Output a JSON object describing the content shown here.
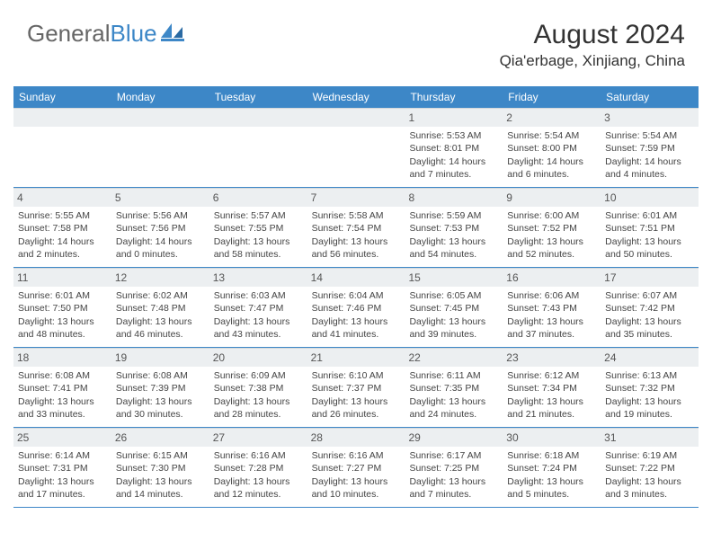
{
  "brand": {
    "word1": "General",
    "word2": "Blue"
  },
  "title": "August 2024",
  "location": "Qia'erbage, Xinjiang, China",
  "style": {
    "header_bg": "#3d87c7",
    "header_text": "#ffffff",
    "daynum_bg": "#eceff1",
    "border_color": "#3d87c7",
    "body_text": "#444444",
    "font_family": "Arial",
    "title_fontsize": 30,
    "location_fontsize": 17,
    "dayheader_fontsize": 12,
    "cell_fontsize": 10.5
  },
  "day_names": [
    "Sunday",
    "Monday",
    "Tuesday",
    "Wednesday",
    "Thursday",
    "Friday",
    "Saturday"
  ],
  "weeks": [
    [
      null,
      null,
      null,
      null,
      {
        "n": "1",
        "sunrise": "5:53 AM",
        "sunset": "8:01 PM",
        "daylight": "14 hours and 7 minutes."
      },
      {
        "n": "2",
        "sunrise": "5:54 AM",
        "sunset": "8:00 PM",
        "daylight": "14 hours and 6 minutes."
      },
      {
        "n": "3",
        "sunrise": "5:54 AM",
        "sunset": "7:59 PM",
        "daylight": "14 hours and 4 minutes."
      }
    ],
    [
      {
        "n": "4",
        "sunrise": "5:55 AM",
        "sunset": "7:58 PM",
        "daylight": "14 hours and 2 minutes."
      },
      {
        "n": "5",
        "sunrise": "5:56 AM",
        "sunset": "7:56 PM",
        "daylight": "14 hours and 0 minutes."
      },
      {
        "n": "6",
        "sunrise": "5:57 AM",
        "sunset": "7:55 PM",
        "daylight": "13 hours and 58 minutes."
      },
      {
        "n": "7",
        "sunrise": "5:58 AM",
        "sunset": "7:54 PM",
        "daylight": "13 hours and 56 minutes."
      },
      {
        "n": "8",
        "sunrise": "5:59 AM",
        "sunset": "7:53 PM",
        "daylight": "13 hours and 54 minutes."
      },
      {
        "n": "9",
        "sunrise": "6:00 AM",
        "sunset": "7:52 PM",
        "daylight": "13 hours and 52 minutes."
      },
      {
        "n": "10",
        "sunrise": "6:01 AM",
        "sunset": "7:51 PM",
        "daylight": "13 hours and 50 minutes."
      }
    ],
    [
      {
        "n": "11",
        "sunrise": "6:01 AM",
        "sunset": "7:50 PM",
        "daylight": "13 hours and 48 minutes."
      },
      {
        "n": "12",
        "sunrise": "6:02 AM",
        "sunset": "7:48 PM",
        "daylight": "13 hours and 46 minutes."
      },
      {
        "n": "13",
        "sunrise": "6:03 AM",
        "sunset": "7:47 PM",
        "daylight": "13 hours and 43 minutes."
      },
      {
        "n": "14",
        "sunrise": "6:04 AM",
        "sunset": "7:46 PM",
        "daylight": "13 hours and 41 minutes."
      },
      {
        "n": "15",
        "sunrise": "6:05 AM",
        "sunset": "7:45 PM",
        "daylight": "13 hours and 39 minutes."
      },
      {
        "n": "16",
        "sunrise": "6:06 AM",
        "sunset": "7:43 PM",
        "daylight": "13 hours and 37 minutes."
      },
      {
        "n": "17",
        "sunrise": "6:07 AM",
        "sunset": "7:42 PM",
        "daylight": "13 hours and 35 minutes."
      }
    ],
    [
      {
        "n": "18",
        "sunrise": "6:08 AM",
        "sunset": "7:41 PM",
        "daylight": "13 hours and 33 minutes."
      },
      {
        "n": "19",
        "sunrise": "6:08 AM",
        "sunset": "7:39 PM",
        "daylight": "13 hours and 30 minutes."
      },
      {
        "n": "20",
        "sunrise": "6:09 AM",
        "sunset": "7:38 PM",
        "daylight": "13 hours and 28 minutes."
      },
      {
        "n": "21",
        "sunrise": "6:10 AM",
        "sunset": "7:37 PM",
        "daylight": "13 hours and 26 minutes."
      },
      {
        "n": "22",
        "sunrise": "6:11 AM",
        "sunset": "7:35 PM",
        "daylight": "13 hours and 24 minutes."
      },
      {
        "n": "23",
        "sunrise": "6:12 AM",
        "sunset": "7:34 PM",
        "daylight": "13 hours and 21 minutes."
      },
      {
        "n": "24",
        "sunrise": "6:13 AM",
        "sunset": "7:32 PM",
        "daylight": "13 hours and 19 minutes."
      }
    ],
    [
      {
        "n": "25",
        "sunrise": "6:14 AM",
        "sunset": "7:31 PM",
        "daylight": "13 hours and 17 minutes."
      },
      {
        "n": "26",
        "sunrise": "6:15 AM",
        "sunset": "7:30 PM",
        "daylight": "13 hours and 14 minutes."
      },
      {
        "n": "27",
        "sunrise": "6:16 AM",
        "sunset": "7:28 PM",
        "daylight": "13 hours and 12 minutes."
      },
      {
        "n": "28",
        "sunrise": "6:16 AM",
        "sunset": "7:27 PM",
        "daylight": "13 hours and 10 minutes."
      },
      {
        "n": "29",
        "sunrise": "6:17 AM",
        "sunset": "7:25 PM",
        "daylight": "13 hours and 7 minutes."
      },
      {
        "n": "30",
        "sunrise": "6:18 AM",
        "sunset": "7:24 PM",
        "daylight": "13 hours and 5 minutes."
      },
      {
        "n": "31",
        "sunrise": "6:19 AM",
        "sunset": "7:22 PM",
        "daylight": "13 hours and 3 minutes."
      }
    ]
  ],
  "labels": {
    "sunrise": "Sunrise:",
    "sunset": "Sunset:",
    "daylight": "Daylight:"
  }
}
